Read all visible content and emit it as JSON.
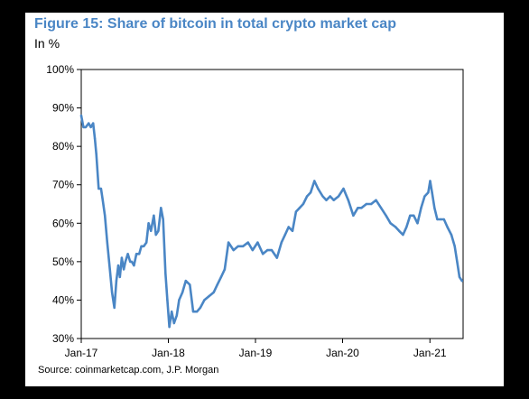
{
  "title": "Figure 15: Share of bitcoin in total crypto market cap",
  "unit_label": "In %",
  "source": "Source: coinmarketcap.com, J.P. Morgan",
  "colors": {
    "title": "#4a86c5",
    "series_line": "#4a86c5",
    "axis": "#000000",
    "background": "#ffffff",
    "frame": "#000000"
  },
  "chart_data": {
    "type": "line",
    "title": "Figure 15: Share of bitcoin in total crypto market cap",
    "xlabel": "",
    "ylabel": "In %",
    "grid": false,
    "legend": "none",
    "ylim": [
      30,
      100
    ],
    "xlim": [
      "2017-01-01",
      "2021-05-20"
    ],
    "y_ticks": [
      "30%",
      "40%",
      "50%",
      "60%",
      "70%",
      "80%",
      "90%",
      "100%"
    ],
    "y_tick_values": [
      30,
      40,
      50,
      60,
      70,
      80,
      90,
      100
    ],
    "x_ticks": [
      "Jan-17",
      "Jan-18",
      "Jan-19",
      "Jan-20",
      "Jan-21"
    ],
    "x_tick_dates": [
      "2017-01-01",
      "2018-01-01",
      "2019-01-01",
      "2020-01-01",
      "2021-01-01"
    ],
    "series": [
      {
        "x": [
          "2017-01-01",
          "2017-01-10",
          "2017-01-20",
          "2017-02-01",
          "2017-02-10",
          "2017-02-20",
          "2017-02-27",
          "2017-03-05",
          "2017-03-15",
          "2017-03-25",
          "2017-04-01",
          "2017-04-10",
          "2017-04-20",
          "2017-05-01",
          "2017-05-10",
          "2017-05-20",
          "2017-05-28",
          "2017-06-05",
          "2017-06-12",
          "2017-06-20",
          "2017-06-28",
          "2017-07-05",
          "2017-07-15",
          "2017-07-25",
          "2017-08-01",
          "2017-08-10",
          "2017-08-20",
          "2017-09-01",
          "2017-09-10",
          "2017-09-20",
          "2017-10-01",
          "2017-10-10",
          "2017-10-20",
          "2017-11-01",
          "2017-11-10",
          "2017-11-20",
          "2017-12-01",
          "2017-12-10",
          "2017-12-20",
          "2017-12-28",
          "2018-01-05",
          "2018-01-15",
          "2018-01-25",
          "2018-02-05",
          "2018-02-15",
          "2018-03-01",
          "2018-03-15",
          "2018-04-01",
          "2018-04-15",
          "2018-05-01",
          "2018-05-15",
          "2018-06-01",
          "2018-06-20",
          "2018-07-10",
          "2018-07-25",
          "2018-08-10",
          "2018-08-25",
          "2018-09-10",
          "2018-10-01",
          "2018-10-20",
          "2018-11-10",
          "2018-12-01",
          "2018-12-20",
          "2019-01-10",
          "2019-02-01",
          "2019-02-20",
          "2019-03-10",
          "2019-04-01",
          "2019-04-20",
          "2019-05-05",
          "2019-05-20",
          "2019-06-05",
          "2019-06-20",
          "2019-07-05",
          "2019-07-20",
          "2019-08-05",
          "2019-08-20",
          "2019-09-05",
          "2019-09-20",
          "2019-10-10",
          "2019-10-25",
          "2019-11-10",
          "2019-11-25",
          "2019-12-15",
          "2020-01-05",
          "2020-01-25",
          "2020-02-15",
          "2020-03-05",
          "2020-03-20",
          "2020-04-10",
          "2020-04-30",
          "2020-05-20",
          "2020-06-10",
          "2020-07-01",
          "2020-07-20",
          "2020-08-10",
          "2020-08-25",
          "2020-09-10",
          "2020-09-25",
          "2020-10-10",
          "2020-10-25",
          "2020-11-10",
          "2020-11-25",
          "2020-12-10",
          "2020-12-25",
          "2021-01-02",
          "2021-01-10",
          "2021-01-20",
          "2021-02-01",
          "2021-02-15",
          "2021-03-01",
          "2021-03-15",
          "2021-04-01",
          "2021-04-15",
          "2021-04-25",
          "2021-05-05",
          "2021-05-15"
        ],
        "values": [
          88,
          85,
          85,
          86,
          85,
          86,
          82,
          78,
          69,
          69,
          66,
          62,
          55,
          48,
          42,
          38,
          45,
          49,
          46,
          51,
          48,
          50,
          52,
          50,
          50,
          49,
          52,
          52,
          54,
          54,
          55,
          60,
          58,
          62,
          57,
          58,
          64,
          61,
          47,
          40,
          33,
          37,
          34,
          36,
          40,
          42,
          45,
          44,
          37,
          37,
          38,
          40,
          41,
          42,
          44,
          46,
          48,
          55,
          53,
          54,
          54,
          55,
          53,
          55,
          52,
          53,
          53,
          51,
          55,
          57,
          59,
          58,
          63,
          64,
          65,
          67,
          68,
          71,
          69,
          67,
          66,
          67,
          66,
          67,
          69,
          66,
          62,
          64,
          64,
          65,
          65,
          66,
          64,
          62,
          60,
          59,
          58,
          57,
          59,
          62,
          62,
          60,
          64,
          67,
          68,
          71,
          68,
          64,
          61,
          61,
          61,
          59,
          57,
          54,
          50,
          46,
          45
        ]
      }
    ]
  }
}
